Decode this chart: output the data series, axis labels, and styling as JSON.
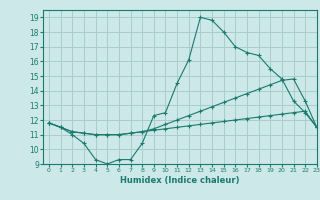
{
  "xlabel": "Humidex (Indice chaleur)",
  "bg_color": "#cce8e8",
  "grid_color": "#aacccc",
  "line_color": "#1a7a6e",
  "xlim": [
    -0.5,
    23
  ],
  "ylim": [
    9,
    19.5
  ],
  "xticks": [
    0,
    1,
    2,
    3,
    4,
    5,
    6,
    7,
    8,
    9,
    10,
    11,
    12,
    13,
    14,
    15,
    16,
    17,
    18,
    19,
    20,
    21,
    22,
    23
  ],
  "yticks": [
    9,
    10,
    11,
    12,
    13,
    14,
    15,
    16,
    17,
    18,
    19
  ],
  "line1_x": [
    0,
    1,
    2,
    3,
    4,
    5,
    6,
    7,
    8,
    9,
    10,
    11,
    12,
    13,
    14,
    15,
    16,
    17,
    18,
    19,
    20,
    21,
    22,
    23
  ],
  "line1_y": [
    11.8,
    11.5,
    11.0,
    10.4,
    9.3,
    9.0,
    9.3,
    9.3,
    10.4,
    12.3,
    12.5,
    14.5,
    16.1,
    19.0,
    18.8,
    18.0,
    17.0,
    16.6,
    16.4,
    15.5,
    14.8,
    13.3,
    12.5,
    11.5
  ],
  "line2_x": [
    0,
    1,
    2,
    3,
    4,
    5,
    6,
    7,
    8,
    9,
    10,
    11,
    12,
    13,
    14,
    15,
    16,
    17,
    18,
    19,
    20,
    21,
    22,
    23
  ],
  "line2_y": [
    11.8,
    11.5,
    11.2,
    11.1,
    11.0,
    11.0,
    11.0,
    11.1,
    11.2,
    11.3,
    11.4,
    11.5,
    11.6,
    11.7,
    11.8,
    11.9,
    12.0,
    12.1,
    12.2,
    12.3,
    12.4,
    12.5,
    12.6,
    11.5
  ],
  "line3_x": [
    0,
    1,
    2,
    3,
    4,
    5,
    6,
    7,
    8,
    9,
    10,
    11,
    12,
    13,
    14,
    15,
    16,
    17,
    18,
    19,
    20,
    21,
    22,
    23
  ],
  "line3_y": [
    11.8,
    11.5,
    11.2,
    11.1,
    11.0,
    11.0,
    11.0,
    11.1,
    11.2,
    11.4,
    11.7,
    12.0,
    12.3,
    12.6,
    12.9,
    13.2,
    13.5,
    13.8,
    14.1,
    14.4,
    14.7,
    14.8,
    13.3,
    11.5
  ]
}
